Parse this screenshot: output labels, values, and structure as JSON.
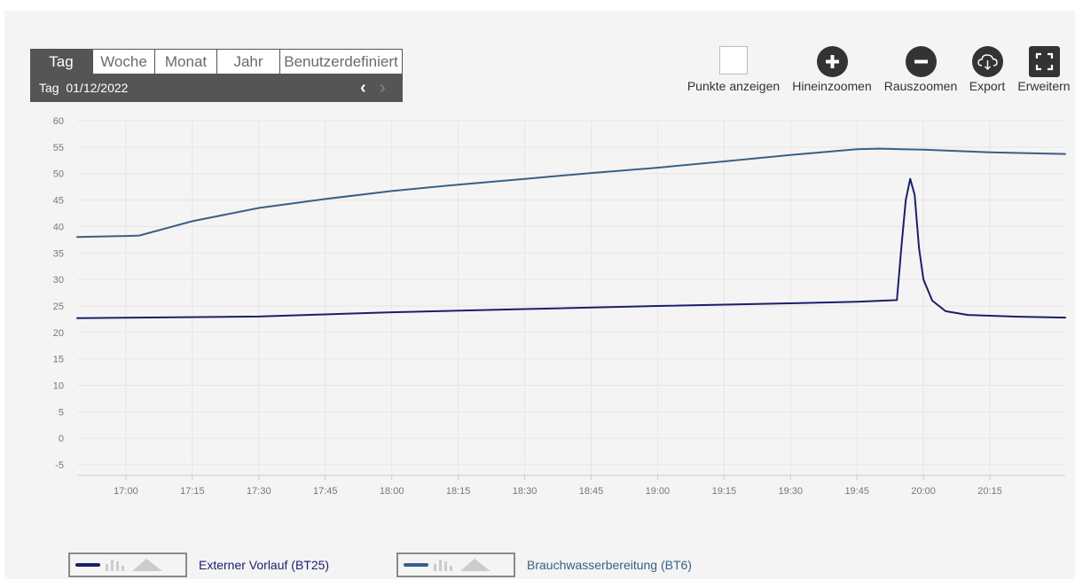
{
  "period_tabs": [
    "Tag",
    "Woche",
    "Monat",
    "Jahr",
    "Benutzerdefiniert"
  ],
  "active_tab": "Tag",
  "date_prefix": "Tag",
  "date_value": "01/12/2022",
  "toolbar": {
    "show_points": "Punkte anzeigen",
    "zoom_in": "Hineinzoomen",
    "zoom_out": "Rauszoomen",
    "export": "Export",
    "expand": "Erweitern"
  },
  "colors": {
    "series1": "#1a1f6b",
    "series2": "#3a5f87",
    "grid": "#e6e6e6",
    "axis_text": "#777777"
  },
  "chart_data": {
    "type": "line",
    "title": "",
    "xlabel": "",
    "ylabel": "",
    "ylim": [
      -7,
      60
    ],
    "yticks": [
      60,
      55,
      50,
      45,
      40,
      35,
      30,
      25,
      20,
      15,
      10,
      5,
      0,
      -5
    ],
    "xlim": [
      "16:49",
      "20:32"
    ],
    "xticks": [
      "17:00",
      "17:15",
      "17:30",
      "17:45",
      "18:00",
      "18:15",
      "18:30",
      "18:45",
      "19:00",
      "19:15",
      "19:30",
      "19:45",
      "20:00",
      "20:15"
    ],
    "grid": true,
    "legend_position": "bottom",
    "series": [
      {
        "name": "Externer Vorlauf (BT25)",
        "color": "#1a1f6b",
        "points": [
          [
            "16:49",
            22.7
          ],
          [
            "17:30",
            23.0
          ],
          [
            "18:00",
            23.8
          ],
          [
            "18:30",
            24.4
          ],
          [
            "19:00",
            25.0
          ],
          [
            "19:30",
            25.5
          ],
          [
            "19:45",
            25.8
          ],
          [
            "19:54",
            26.1
          ],
          [
            "19:55",
            36.0
          ],
          [
            "19:56",
            45.0
          ],
          [
            "19:57",
            49.0
          ],
          [
            "19:58",
            46.0
          ],
          [
            "19:59",
            36.0
          ],
          [
            "20:00",
            30.0
          ],
          [
            "20:02",
            26.0
          ],
          [
            "20:05",
            24.0
          ],
          [
            "20:10",
            23.3
          ],
          [
            "20:20",
            23.0
          ],
          [
            "20:32",
            22.8
          ]
        ]
      },
      {
        "name": "Brauchwasserbereitung (BT6)",
        "color": "#3a5f87",
        "points": [
          [
            "16:49",
            38.0
          ],
          [
            "17:00",
            38.2
          ],
          [
            "17:03",
            38.3
          ],
          [
            "17:15",
            41.0
          ],
          [
            "17:30",
            43.5
          ],
          [
            "17:45",
            45.2
          ],
          [
            "18:00",
            46.7
          ],
          [
            "18:15",
            47.9
          ],
          [
            "18:30",
            49.0
          ],
          [
            "18:45",
            50.1
          ],
          [
            "19:00",
            51.1
          ],
          [
            "19:15",
            52.3
          ],
          [
            "19:30",
            53.5
          ],
          [
            "19:45",
            54.6
          ],
          [
            "19:50",
            54.7
          ],
          [
            "20:00",
            54.5
          ],
          [
            "20:15",
            54.0
          ],
          [
            "20:32",
            53.7
          ]
        ]
      }
    ]
  }
}
